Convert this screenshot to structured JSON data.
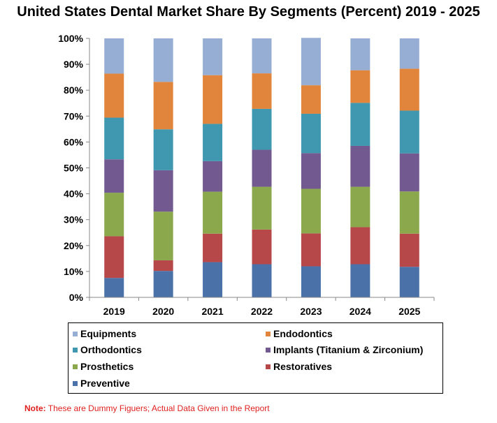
{
  "chart_data": {
    "type": "bar",
    "stacked": true,
    "title": "United States Dental Market Share By Segments (Percent) 2019 - 2025",
    "xlabel": "",
    "ylabel": "",
    "ylim": [
      0,
      100
    ],
    "y_ticks": [
      "0%",
      "10%",
      "20%",
      "30%",
      "40%",
      "50%",
      "60%",
      "70%",
      "80%",
      "90%",
      "100%"
    ],
    "categories": [
      "2019",
      "2020",
      "2021",
      "2022",
      "2023",
      "2024",
      "2025"
    ],
    "series": [
      {
        "name": "Preventive",
        "color": "#4a71a8",
        "values": [
          7.5,
          10.2,
          13.6,
          12.8,
          12.0,
          12.8,
          11.8
        ]
      },
      {
        "name": "Restoratives",
        "color": "#b7484a",
        "values": [
          16.1,
          4.1,
          11.0,
          13.4,
          12.7,
          14.3,
          12.8
        ]
      },
      {
        "name": "Prosthetics",
        "color": "#8ca84d",
        "values": [
          16.8,
          18.8,
          16.2,
          16.5,
          17.2,
          15.6,
          16.3
        ]
      },
      {
        "name": "Implants (Titanium & Zirconium)",
        "color": "#725a90",
        "values": [
          12.9,
          16.0,
          11.8,
          14.3,
          13.8,
          15.8,
          14.7
        ]
      },
      {
        "name": "Orthodontics",
        "color": "#3f98b0",
        "values": [
          16.1,
          15.8,
          14.4,
          15.8,
          15.2,
          16.6,
          16.5
        ]
      },
      {
        "name": "Endodontics",
        "color": "#e2853c",
        "values": [
          17.0,
          18.3,
          18.8,
          13.7,
          11.0,
          12.6,
          16.2
        ]
      },
      {
        "name": "Equipments",
        "color": "#97aed4",
        "values": [
          13.6,
          16.8,
          14.2,
          13.5,
          18.3,
          12.3,
          11.7
        ]
      }
    ],
    "legend_position": "bottom",
    "grid": false
  },
  "legend": {
    "items": [
      {
        "label": "Equipments",
        "color": "#97aed4"
      },
      {
        "label": "Endodontics",
        "color": "#e2853c"
      },
      {
        "label": "Orthodontics",
        "color": "#3f98b0"
      },
      {
        "label": "Implants (Titanium & Zirconium)",
        "color": "#725a90"
      },
      {
        "label": "Prosthetics",
        "color": "#8ca84d"
      },
      {
        "label": "Restoratives",
        "color": "#b7484a"
      },
      {
        "label": "Preventive",
        "color": "#4a71a8"
      }
    ]
  },
  "note": {
    "label": "Note:",
    "text": " These are Dummy Figuers; Actual Data Given in the Report"
  }
}
